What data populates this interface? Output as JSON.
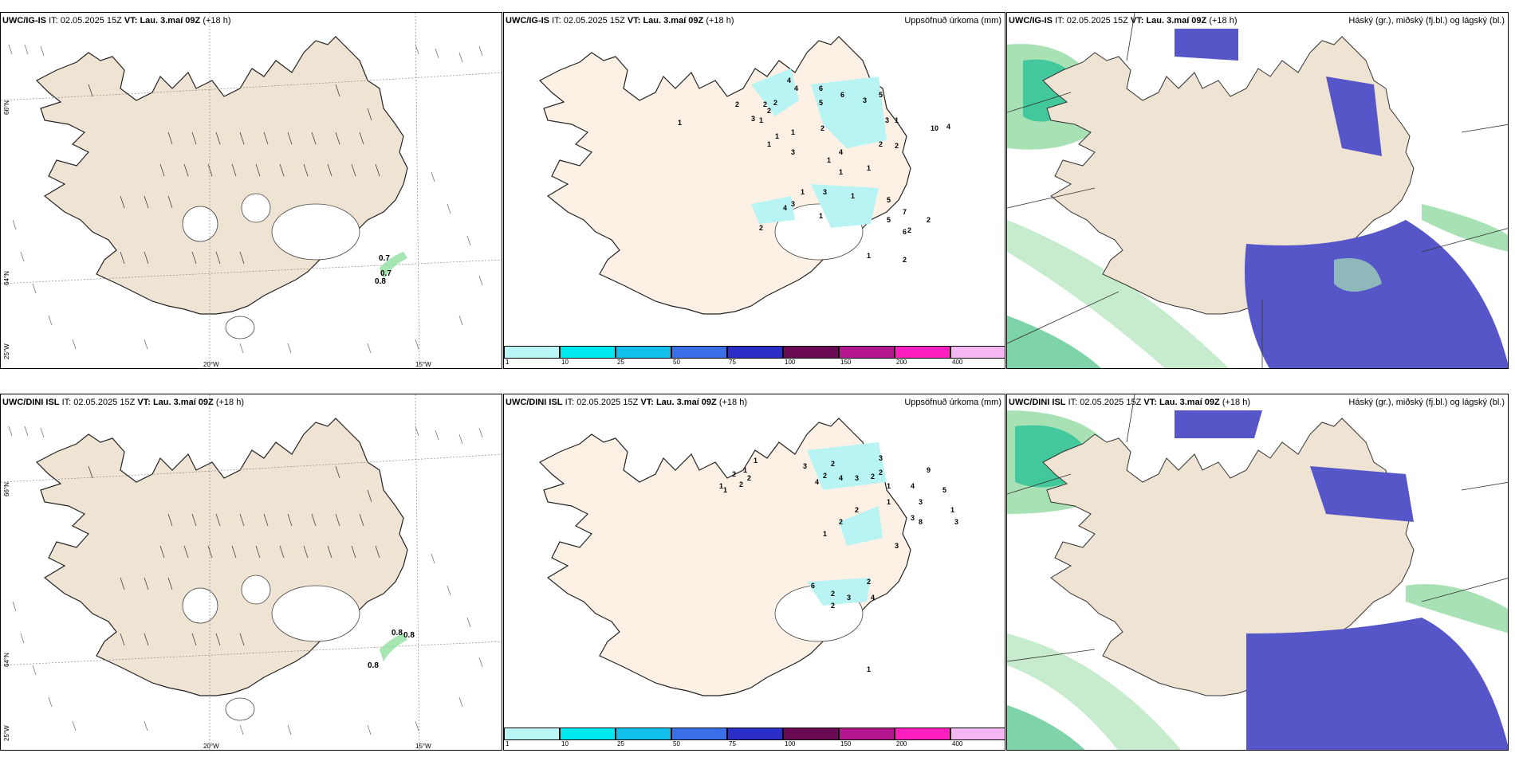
{
  "common": {
    "it_prefix": "IT:",
    "it_value": "02.05.2025 15Z",
    "vt_prefix": "VT:",
    "vt_value": "Lau. 3.maí 09Z",
    "lead": "(+18 h)"
  },
  "rows": [
    {
      "model": "UWC/IG-IS",
      "precip_labels": [
        "1",
        "2",
        "3",
        "1",
        "2",
        "2",
        "2",
        "4",
        "4",
        "6",
        "5",
        "6",
        "3",
        "5",
        "3",
        "2",
        "1",
        "1",
        "1",
        "2",
        "3",
        "4",
        "1",
        "1",
        "3",
        "1",
        "2",
        "1",
        "4",
        "10",
        "7",
        "1",
        "5",
        "1",
        "1",
        "3",
        "4",
        "2",
        "2",
        "5",
        "6",
        "2",
        "1",
        "2"
      ],
      "wind_gust_labels": [
        "0.7",
        "0.7",
        "0.8"
      ]
    },
    {
      "model": "UWC/DINI ISL",
      "precip_labels": [
        "1",
        "1",
        "2",
        "2",
        "1",
        "1",
        "2",
        "3",
        "4",
        "2",
        "2",
        "4",
        "3",
        "2",
        "3",
        "2",
        "1",
        "1",
        "2",
        "2",
        "1",
        "8",
        "4",
        "9",
        "3",
        "5",
        "1",
        "3",
        "3",
        "3",
        "2",
        "6",
        "2",
        "4",
        "3",
        "2",
        "1"
      ],
      "wind_gust_labels": [
        "0.8",
        "0.8",
        "0.8"
      ]
    }
  ],
  "panels": {
    "precip_title": "Uppsöfnuð úrkoma (mm)",
    "cloud_title": "Háský (gr.), miðský (fj.bl.) og lágský (bl.)"
  },
  "axes": {
    "lat_66": "66°N",
    "lat_64": "64°N",
    "lon_20": "20°W",
    "lon_15": "15°W",
    "lon_25": "25°W"
  },
  "colorbar": {
    "ticks": [
      "1",
      "10",
      "25",
      "50",
      "75",
      "100",
      "150",
      "200",
      "400"
    ],
    "colors": [
      "#b8f7f5",
      "#00eaf0",
      "#10c0ea",
      "#3a6fe8",
      "#2b2fc8",
      "#6a0a55",
      "#b5178f",
      "#ff1fbf",
      "#f4b7f4"
    ]
  },
  "colors": {
    "land": "#efe3d3",
    "land_precip": "#fdf1e6",
    "glacier": "#ffffff",
    "cyan_rain": "#b8f4f4",
    "high_cloud": "#a8e2b4",
    "mid_cloud": "#5656c8",
    "low_cloud": "#00b890"
  }
}
